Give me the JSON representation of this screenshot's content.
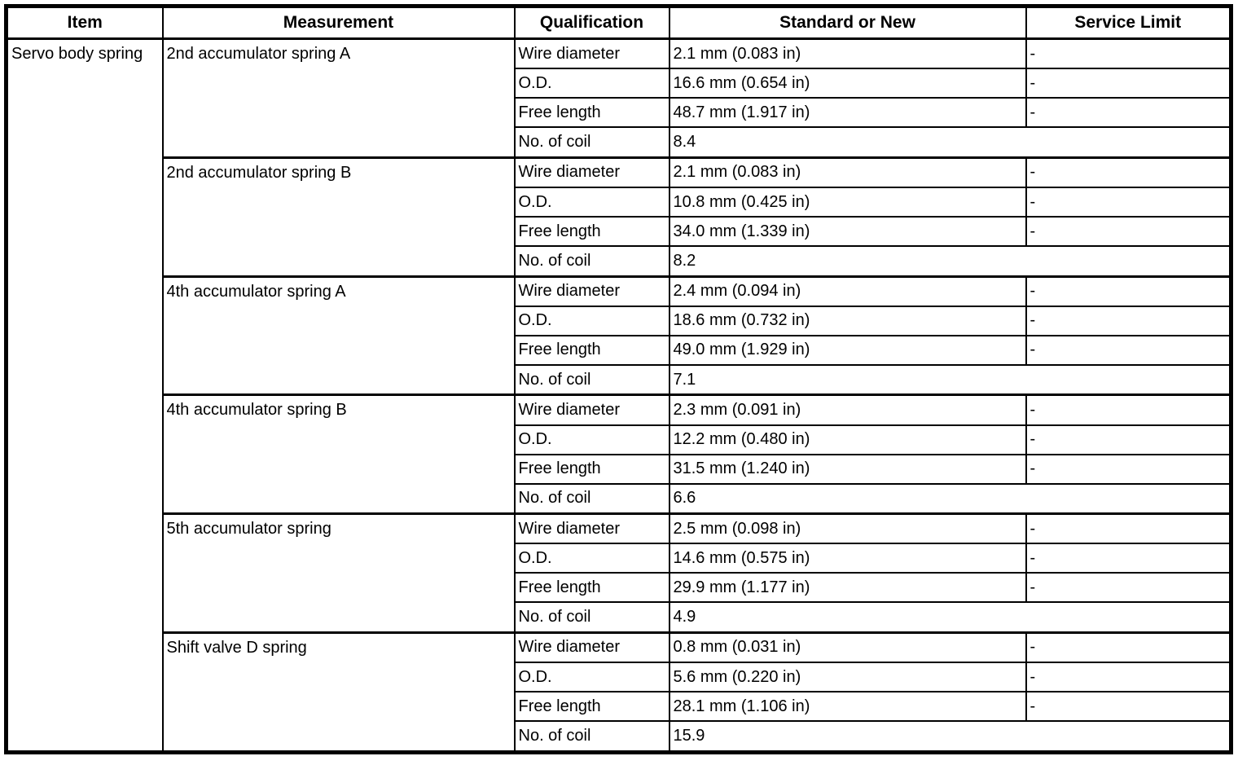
{
  "table": {
    "headers": {
      "item": "Item",
      "measurement": "Measurement",
      "qualification": "Qualification",
      "standard": "Standard or New",
      "service_limit": "Service Limit"
    },
    "item_label": "Servo body spring",
    "groups": [
      {
        "measurement": "2nd accumulator spring A",
        "rows": [
          {
            "qualification": "Wire diameter",
            "standard": "2.1 mm (0.083 in)",
            "service_limit": "-"
          },
          {
            "qualification": "O.D.",
            "standard": "16.6 mm (0.654 in)",
            "service_limit": "-"
          },
          {
            "qualification": "Free length",
            "standard": "48.7 mm (1.917 in)",
            "service_limit": "-"
          },
          {
            "qualification": "No. of coil",
            "standard": "8.4",
            "service_limit": null
          }
        ]
      },
      {
        "measurement": "2nd accumulator spring B",
        "rows": [
          {
            "qualification": "Wire diameter",
            "standard": "2.1 mm (0.083 in)",
            "service_limit": "-"
          },
          {
            "qualification": "O.D.",
            "standard": "10.8 mm (0.425 in)",
            "service_limit": "-"
          },
          {
            "qualification": "Free length",
            "standard": "34.0 mm (1.339 in)",
            "service_limit": "-"
          },
          {
            "qualification": "No. of coil",
            "standard": "8.2",
            "service_limit": null
          }
        ]
      },
      {
        "measurement": "4th accumulator spring A",
        "rows": [
          {
            "qualification": "Wire diameter",
            "standard": "2.4 mm (0.094 in)",
            "service_limit": "-"
          },
          {
            "qualification": "O.D.",
            "standard": "18.6 mm (0.732 in)",
            "service_limit": "-"
          },
          {
            "qualification": "Free length",
            "standard": "49.0 mm (1.929 in)",
            "service_limit": "-"
          },
          {
            "qualification": "No. of coil",
            "standard": "7.1",
            "service_limit": null
          }
        ]
      },
      {
        "measurement": "4th accumulator spring B",
        "rows": [
          {
            "qualification": "Wire diameter",
            "standard": "2.3 mm (0.091 in)",
            "service_limit": "-"
          },
          {
            "qualification": "O.D.",
            "standard": "12.2 mm (0.480 in)",
            "service_limit": "-"
          },
          {
            "qualification": "Free length",
            "standard": "31.5 mm (1.240 in)",
            "service_limit": "-"
          },
          {
            "qualification": "No. of coil",
            "standard": "6.6",
            "service_limit": null
          }
        ]
      },
      {
        "measurement": "5th accumulator spring",
        "rows": [
          {
            "qualification": "Wire diameter",
            "standard": "2.5 mm (0.098 in)",
            "service_limit": "-"
          },
          {
            "qualification": "O.D.",
            "standard": "14.6 mm (0.575 in)",
            "service_limit": "-"
          },
          {
            "qualification": "Free length",
            "standard": "29.9 mm (1.177 in)",
            "service_limit": "-"
          },
          {
            "qualification": "No. of coil",
            "standard": "4.9",
            "service_limit": null
          }
        ]
      },
      {
        "measurement": "Shift valve D spring",
        "rows": [
          {
            "qualification": "Wire diameter",
            "standard": "0.8 mm (0.031 in)",
            "service_limit": "-"
          },
          {
            "qualification": "O.D.",
            "standard": "5.6 mm (0.220 in)",
            "service_limit": "-"
          },
          {
            "qualification": "Free length",
            "standard": "28.1 mm (1.106 in)",
            "service_limit": "-"
          },
          {
            "qualification": "No. of coil",
            "standard": "15.9",
            "service_limit": null
          }
        ]
      }
    ],
    "colors": {
      "border": "#000000",
      "text": "#000000",
      "background": "#ffffff"
    }
  }
}
